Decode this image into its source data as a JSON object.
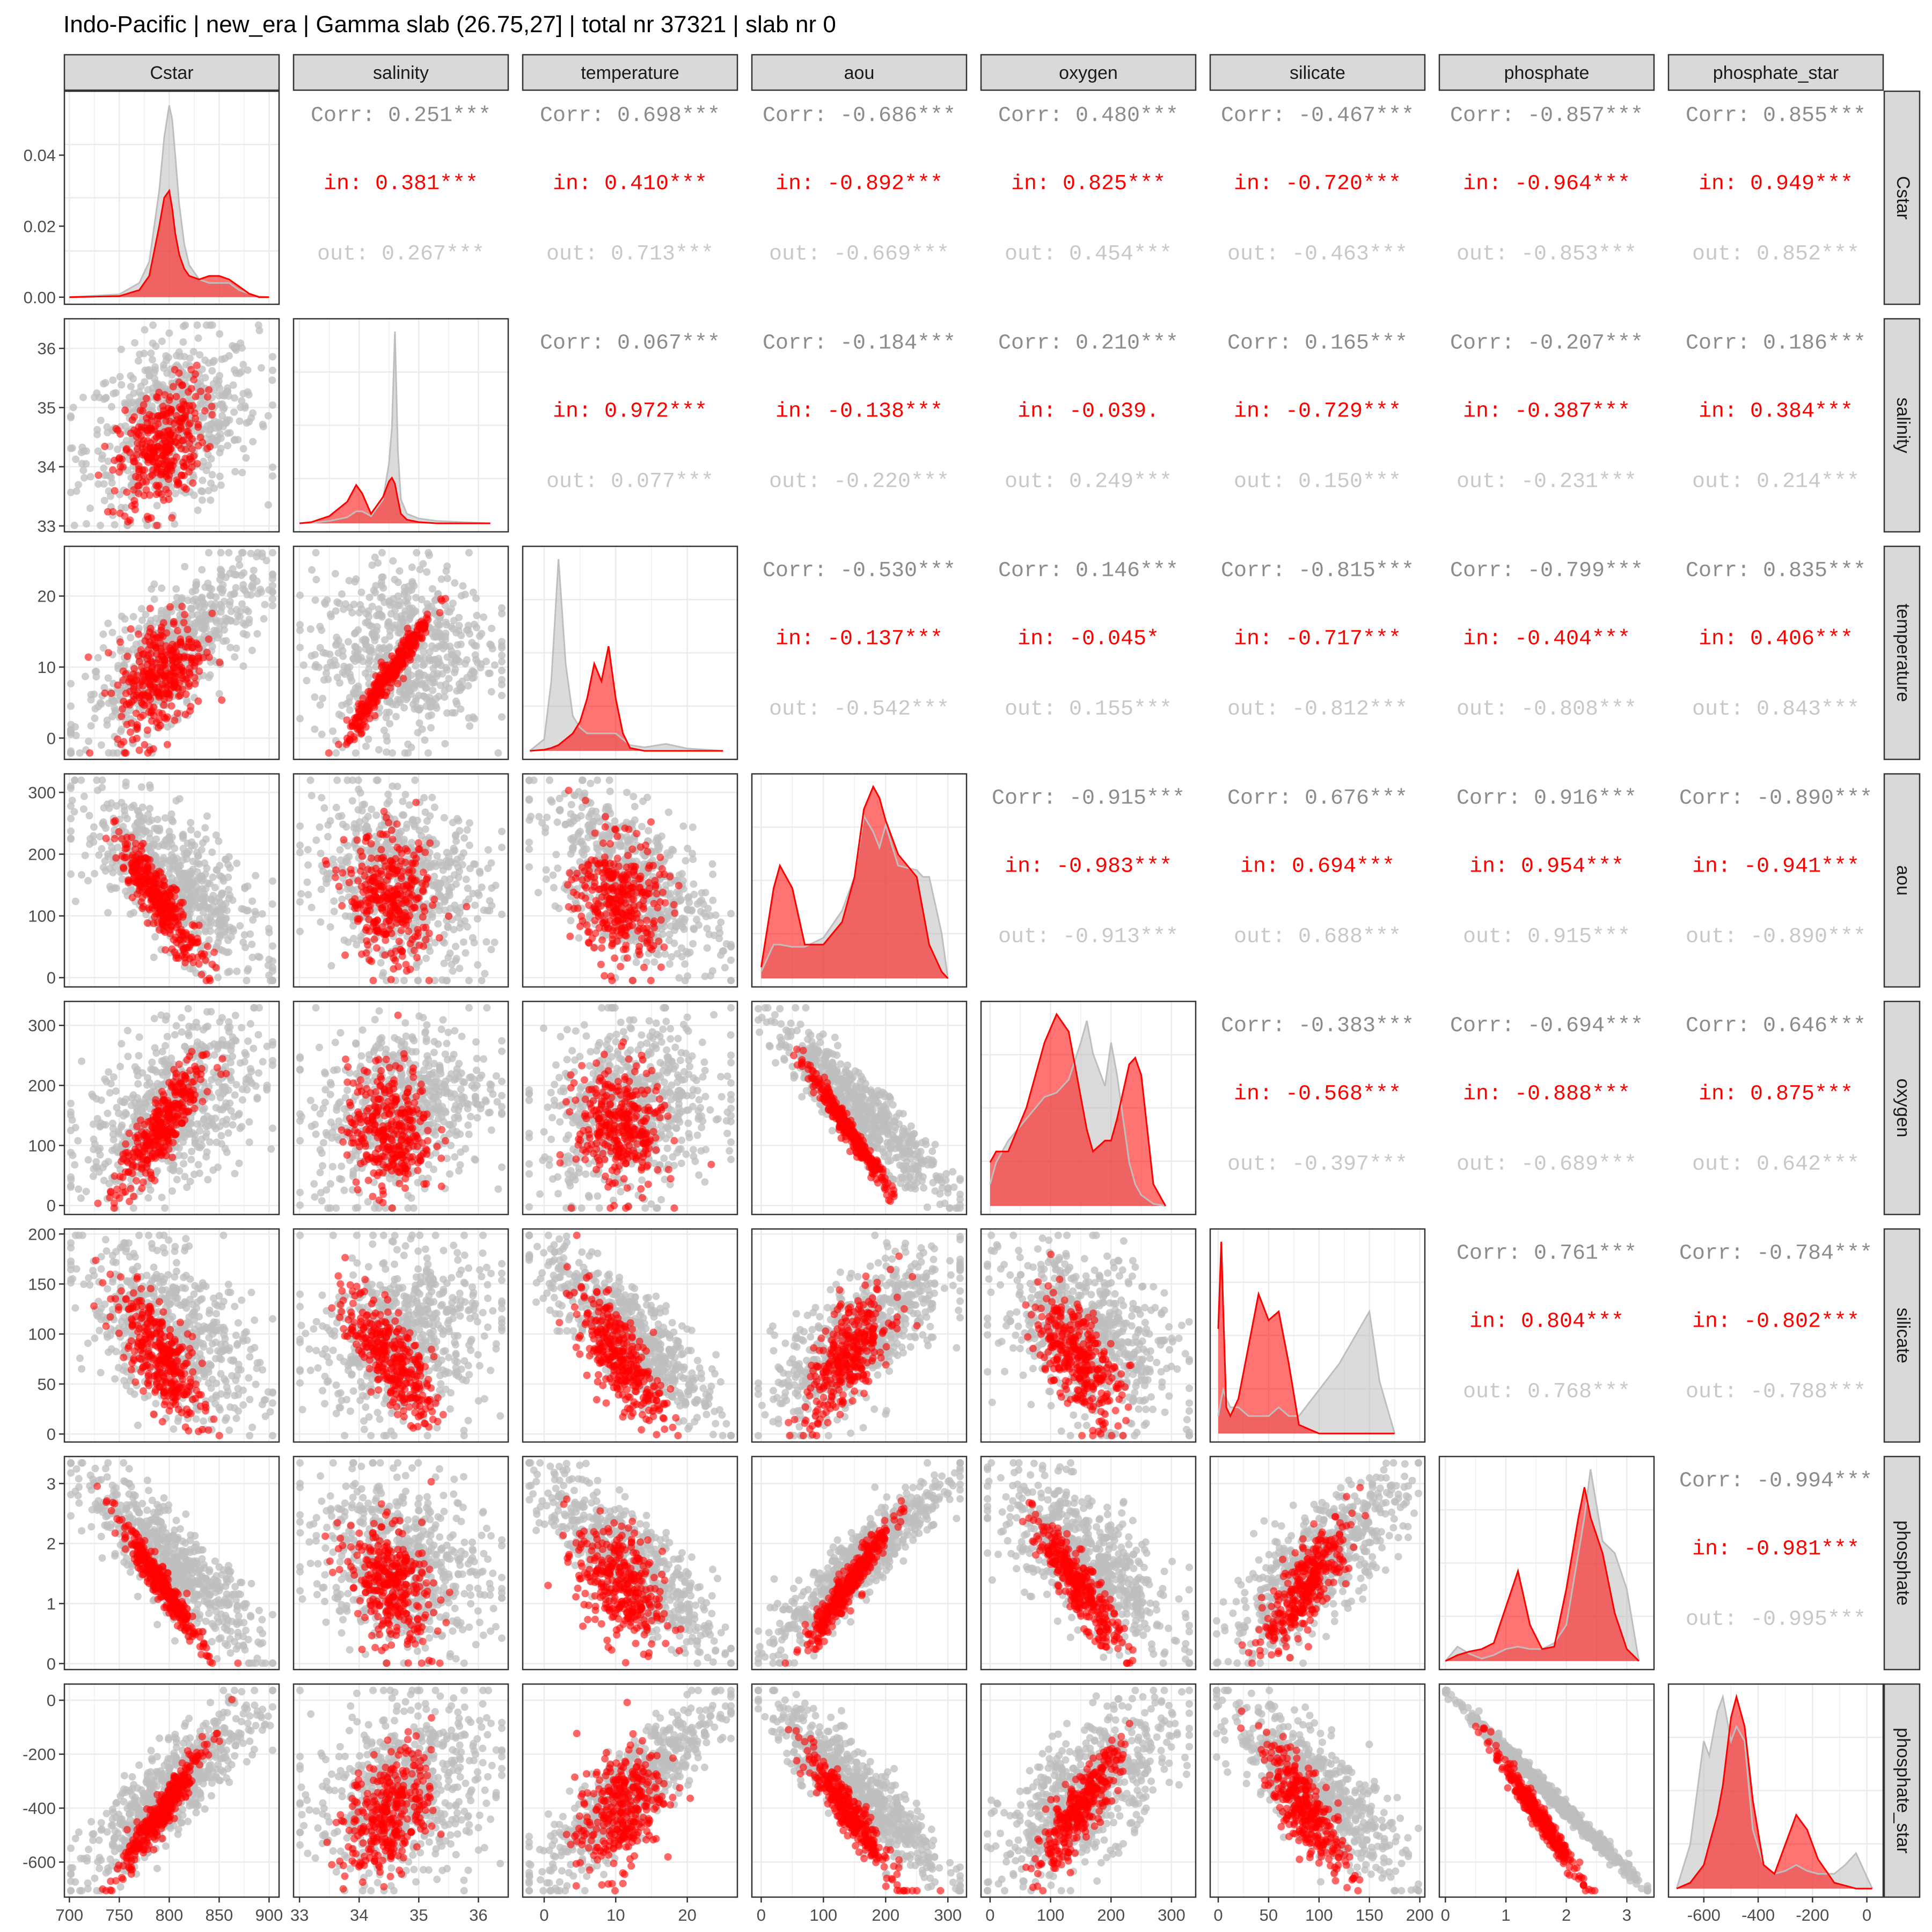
{
  "title": "Indo-Pacific |  new_era | Gamma slab (26.75,27] | total nr 37321 | slab nr 0",
  "chart_data": {
    "type": "scatter-matrix",
    "variables": [
      "Cstar",
      "salinity",
      "temperature",
      "aou",
      "oxygen",
      "silicate",
      "phosphate",
      "phosphate_star"
    ],
    "ranges": {
      "Cstar": [
        695,
        910
      ],
      "salinity": [
        32.9,
        36.5
      ],
      "temperature": [
        -3,
        27
      ],
      "aou": [
        -15,
        330
      ],
      "oxygen": [
        -15,
        340
      ],
      "silicate": [
        -8,
        205
      ],
      "phosphate": [
        -0.1,
        3.45
      ],
      "phosphate_star": [
        -730,
        60
      ]
    },
    "ticks": {
      "Cstar": [
        700,
        750,
        800,
        850,
        900
      ],
      "salinity": [
        33,
        34,
        35,
        36
      ],
      "temperature": [
        0,
        10,
        20
      ],
      "aou": [
        0,
        100,
        200,
        300
      ],
      "oxygen": [
        0,
        100,
        200,
        300
      ],
      "silicate": [
        0,
        50,
        100,
        150,
        200
      ],
      "phosphate": [
        0,
        1,
        2,
        3
      ],
      "phosphate_star": [
        -600,
        -400,
        -200,
        0
      ]
    },
    "tick_labels": {
      "Cstar": [
        "700",
        "750",
        "800",
        "850",
        "900"
      ],
      "salinity": [
        "33",
        "34",
        "35",
        "36"
      ],
      "temperature": [
        "0",
        "10",
        "20"
      ],
      "aou": [
        "0",
        "100",
        "200",
        "300"
      ],
      "oxygen": [
        "0",
        "100",
        "200",
        "300"
      ],
      "silicate": [
        "0",
        "50",
        "100",
        "150",
        "200"
      ],
      "phosphate": [
        "0",
        "1",
        "2",
        "3"
      ],
      "phosphate_star": [
        "-600",
        "-400",
        "-200",
        "0"
      ]
    },
    "density_ticks": {
      "values": [
        0,
        0.02,
        0.04
      ],
      "labels": [
        "0.00",
        "0.02",
        "0.04"
      ],
      "range": [
        -0.002,
        0.058
      ]
    },
    "colors": {
      "in": "#ff0000",
      "out": "#bebebe",
      "corr": "#8c8c8c",
      "out_text": "#c8c8c8"
    },
    "correlations": [
      {
        "row": "Cstar",
        "col": "salinity",
        "corr": "Corr: 0.251***",
        "in": "in: 0.381***",
        "out": "out: 0.267***"
      },
      {
        "row": "Cstar",
        "col": "temperature",
        "corr": "Corr: 0.698***",
        "in": "in: 0.410***",
        "out": "out: 0.713***"
      },
      {
        "row": "Cstar",
        "col": "aou",
        "corr": "Corr: -0.686***",
        "in": "in: -0.892***",
        "out": "out: -0.669***"
      },
      {
        "row": "Cstar",
        "col": "oxygen",
        "corr": "Corr: 0.480***",
        "in": "in: 0.825***",
        "out": "out: 0.454***"
      },
      {
        "row": "Cstar",
        "col": "silicate",
        "corr": "Corr: -0.467***",
        "in": "in: -0.720***",
        "out": "out: -0.463***"
      },
      {
        "row": "Cstar",
        "col": "phosphate",
        "corr": "Corr: -0.857***",
        "in": "in: -0.964***",
        "out": "out: -0.853***"
      },
      {
        "row": "Cstar",
        "col": "phosphate_star",
        "corr": "Corr: 0.855***",
        "in": "in: 0.949***",
        "out": "out: 0.852***"
      },
      {
        "row": "salinity",
        "col": "temperature",
        "corr": "Corr: 0.067***",
        "in": "in: 0.972***",
        "out": "out: 0.077***"
      },
      {
        "row": "salinity",
        "col": "aou",
        "corr": "Corr: -0.184***",
        "in": "in: -0.138***",
        "out": "out: -0.220***"
      },
      {
        "row": "salinity",
        "col": "oxygen",
        "corr": "Corr: 0.210***",
        "in": "in: -0.039.",
        "out": "out: 0.249***"
      },
      {
        "row": "salinity",
        "col": "silicate",
        "corr": "Corr: 0.165***",
        "in": "in: -0.729***",
        "out": "out: 0.150***"
      },
      {
        "row": "salinity",
        "col": "phosphate",
        "corr": "Corr: -0.207***",
        "in": "in: -0.387***",
        "out": "out: -0.231***"
      },
      {
        "row": "salinity",
        "col": "phosphate_star",
        "corr": "Corr: 0.186***",
        "in": "in: 0.384***",
        "out": "out: 0.214***"
      },
      {
        "row": "temperature",
        "col": "aou",
        "corr": "Corr: -0.530***",
        "in": "in: -0.137***",
        "out": "out: -0.542***"
      },
      {
        "row": "temperature",
        "col": "oxygen",
        "corr": "Corr: 0.146***",
        "in": "in: -0.045*",
        "out": "out: 0.155***"
      },
      {
        "row": "temperature",
        "col": "silicate",
        "corr": "Corr: -0.815***",
        "in": "in: -0.717***",
        "out": "out: -0.812***"
      },
      {
        "row": "temperature",
        "col": "phosphate",
        "corr": "Corr: -0.799***",
        "in": "in: -0.404***",
        "out": "out: -0.808***"
      },
      {
        "row": "temperature",
        "col": "phosphate_star",
        "corr": "Corr: 0.835***",
        "in": "in: 0.406***",
        "out": "out: 0.843***"
      },
      {
        "row": "aou",
        "col": "oxygen",
        "corr": "Corr: -0.915***",
        "in": "in: -0.983***",
        "out": "out: -0.913***"
      },
      {
        "row": "aou",
        "col": "silicate",
        "corr": "Corr: 0.676***",
        "in": "in: 0.694***",
        "out": "out: 0.688***"
      },
      {
        "row": "aou",
        "col": "phosphate",
        "corr": "Corr: 0.916***",
        "in": "in: 0.954***",
        "out": "out: 0.915***"
      },
      {
        "row": "aou",
        "col": "phosphate_star",
        "corr": "Corr: -0.890***",
        "in": "in: -0.941***",
        "out": "out: -0.890***"
      },
      {
        "row": "oxygen",
        "col": "silicate",
        "corr": "Corr: -0.383***",
        "in": "in: -0.568***",
        "out": "out: -0.397***"
      },
      {
        "row": "oxygen",
        "col": "phosphate",
        "corr": "Corr: -0.694***",
        "in": "in: -0.888***",
        "out": "out: -0.689***"
      },
      {
        "row": "oxygen",
        "col": "phosphate_star",
        "corr": "Corr: 0.646***",
        "in": "in: 0.875***",
        "out": "out: 0.642***"
      },
      {
        "row": "silicate",
        "col": "phosphate",
        "corr": "Corr: 0.761***",
        "in": "in: 0.804***",
        "out": "out: 0.768***"
      },
      {
        "row": "silicate",
        "col": "phosphate_star",
        "corr": "Corr: -0.784***",
        "in": "in: -0.802***",
        "out": "out: -0.788***"
      },
      {
        "row": "phosphate",
        "col": "phosphate_star",
        "corr": "Corr: -0.994***",
        "in": "in: -0.981***",
        "out": "out: -0.995***"
      }
    ],
    "densities": {
      "Cstar": {
        "x": [
          700,
          750,
          770,
          780,
          790,
          795,
          800,
          803,
          806,
          810,
          815,
          820,
          830,
          840,
          850,
          860,
          870,
          880,
          890,
          900
        ],
        "in": [
          0,
          0.0003,
          0.002,
          0.006,
          0.02,
          0.028,
          0.03,
          0.025,
          0.018,
          0.012,
          0.008,
          0.006,
          0.005,
          0.006,
          0.006,
          0.005,
          0.003,
          0.001,
          0,
          0
        ],
        "out": [
          0,
          0.0008,
          0.004,
          0.01,
          0.03,
          0.045,
          0.054,
          0.05,
          0.04,
          0.026,
          0.015,
          0.009,
          0.005,
          0.004,
          0.004,
          0.004,
          0.002,
          0.001,
          0.0002,
          0
        ]
      },
      "salinity": {
        "x": [
          33.0,
          33.2,
          33.5,
          33.8,
          33.95,
          34.05,
          34.2,
          34.4,
          34.5,
          34.55,
          34.6,
          34.65,
          34.7,
          34.8,
          35.0,
          35.3,
          35.7,
          36.2
        ],
        "in": [
          0,
          0.01,
          0.06,
          0.18,
          0.32,
          0.25,
          0.08,
          0.22,
          0.35,
          0.38,
          0.33,
          0.2,
          0.08,
          0.03,
          0.01,
          0,
          0,
          0
        ],
        "out": [
          0,
          0.004,
          0.02,
          0.05,
          0.1,
          0.1,
          0.06,
          0.2,
          0.5,
          0.8,
          1.6,
          0.6,
          0.2,
          0.08,
          0.04,
          0.02,
          0.01,
          0
        ]
      },
      "temperature": {
        "x": [
          -2,
          0,
          1,
          2,
          3,
          4,
          5,
          6,
          7,
          8,
          9,
          10,
          11,
          12,
          14,
          17,
          20,
          25
        ],
        "in": [
          0,
          0.002,
          0.005,
          0.01,
          0.02,
          0.03,
          0.05,
          0.09,
          0.15,
          0.12,
          0.18,
          0.09,
          0.03,
          0.005,
          0,
          0,
          0,
          0
        ],
        "out": [
          0,
          0.02,
          0.12,
          0.33,
          0.15,
          0.06,
          0.04,
          0.03,
          0.03,
          0.03,
          0.03,
          0.03,
          0.02,
          0.01,
          0.006,
          0.012,
          0.004,
          0
        ]
      },
      "aou": {
        "x": [
          0,
          20,
          30,
          50,
          70,
          100,
          130,
          150,
          165,
          180,
          190,
          200,
          220,
          250,
          260,
          270,
          290,
          300
        ],
        "in": [
          0.0005,
          0.004,
          0.005,
          0.004,
          0.0015,
          0.0015,
          0.0025,
          0.0045,
          0.0075,
          0.0085,
          0.008,
          0.007,
          0.0055,
          0.0045,
          0.003,
          0.0015,
          0.0003,
          0
        ],
        "out": [
          0.0003,
          0.0015,
          0.0015,
          0.0014,
          0.0014,
          0.0018,
          0.003,
          0.0045,
          0.0072,
          0.0065,
          0.0058,
          0.0068,
          0.005,
          0.0048,
          0.0045,
          0.0045,
          0.002,
          0
        ]
      },
      "oxygen": {
        "x": [
          0,
          10,
          30,
          60,
          90,
          110,
          130,
          150,
          160,
          170,
          190,
          200,
          210,
          230,
          240,
          250,
          270,
          290
        ],
        "in": [
          0.002,
          0.0025,
          0.0025,
          0.0045,
          0.0075,
          0.0088,
          0.008,
          0.005,
          0.0035,
          0.0025,
          0.003,
          0.003,
          0.004,
          0.0065,
          0.0068,
          0.006,
          0.001,
          0
        ],
        "out": [
          0.001,
          0.002,
          0.003,
          0.004,
          0.005,
          0.0052,
          0.0058,
          0.0075,
          0.0085,
          0.007,
          0.0055,
          0.0075,
          0.006,
          0.002,
          0.001,
          0.0005,
          0.0001,
          0
        ]
      },
      "silicate": {
        "x": [
          0,
          3,
          5,
          8,
          12,
          20,
          30,
          40,
          50,
          60,
          70,
          80,
          100,
          120,
          140,
          150,
          160,
          175
        ],
        "in": [
          0.012,
          0.022,
          0.014,
          0.003,
          0.002,
          0.004,
          0.01,
          0.016,
          0.013,
          0.014,
          0.008,
          0.001,
          0,
          0,
          0,
          0,
          0,
          0
        ],
        "out": [
          0.002,
          0.004,
          0.005,
          0.004,
          0.003,
          0.003,
          0.002,
          0.002,
          0.002,
          0.003,
          0.002,
          0.002,
          0.005,
          0.008,
          0.012,
          0.014,
          0.006,
          0
        ]
      },
      "phosphate": {
        "x": [
          0,
          0.2,
          0.4,
          0.6,
          0.8,
          1.0,
          1.2,
          1.4,
          1.6,
          1.8,
          2.0,
          2.2,
          2.3,
          2.4,
          2.6,
          2.8,
          3.0,
          3.2
        ],
        "in": [
          0,
          0.05,
          0.08,
          0.1,
          0.15,
          0.45,
          0.75,
          0.3,
          0.1,
          0.12,
          0.6,
          1.2,
          1.45,
          1.2,
          0.9,
          0.4,
          0.1,
          0
        ],
        "out": [
          0,
          0.12,
          0.06,
          0.02,
          0.05,
          0.1,
          0.12,
          0.1,
          0.1,
          0.15,
          0.3,
          0.9,
          1.2,
          1.6,
          1.0,
          0.9,
          0.6,
          0
        ]
      },
      "phosphate_star": {
        "x": [
          -700,
          -650,
          -600,
          -580,
          -550,
          -530,
          -500,
          -480,
          -450,
          -420,
          -380,
          -340,
          -300,
          -260,
          -220,
          -180,
          -120,
          -80,
          -40,
          0,
          20
        ],
        "in": [
          0,
          0.0002,
          0.0008,
          0.0015,
          0.0025,
          0.0035,
          0.0058,
          0.0065,
          0.0055,
          0.003,
          0.0008,
          0.0005,
          0.0015,
          0.0025,
          0.002,
          0.001,
          0.0002,
          0.0001,
          0,
          0,
          0
        ],
        "out": [
          0,
          0.0015,
          0.005,
          0.0045,
          0.006,
          0.0065,
          0.005,
          0.0055,
          0.005,
          0.002,
          0.0008,
          0.0005,
          0.0006,
          0.0008,
          0.0006,
          0.0005,
          0.0005,
          0.0008,
          0.0012,
          0.0004,
          0
        ]
      }
    },
    "scatter_shapes": {
      "note": "",
      "pairs": {}
    }
  }
}
